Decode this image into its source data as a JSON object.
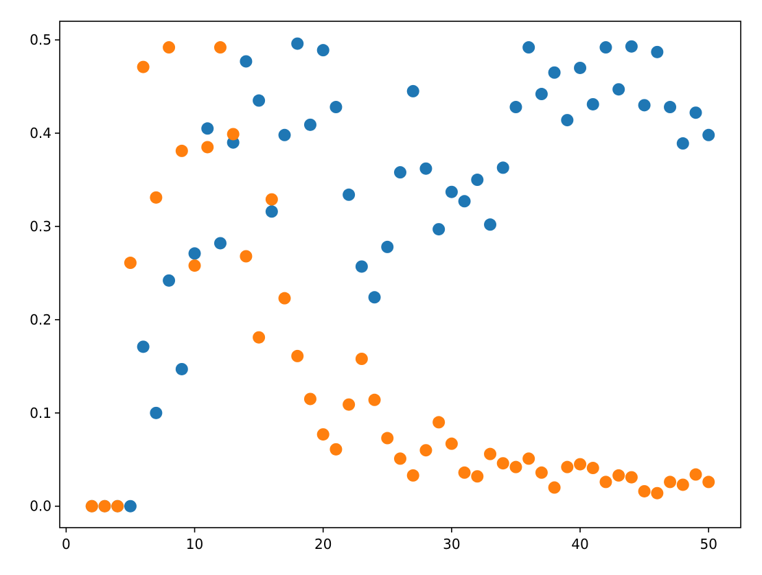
{
  "colors": {
    "series_blue": "#1f77b4",
    "series_orange": "#ff7f0e"
  },
  "chart_data": {
    "type": "scatter",
    "title": "",
    "xlabel": "",
    "ylabel": "",
    "xlim": [
      -0.5,
      52.5
    ],
    "ylim": [
      -0.023,
      0.52
    ],
    "grid": false,
    "legend": "none",
    "x_ticks": [
      0,
      10,
      20,
      30,
      40,
      50
    ],
    "x_tick_labels": [
      "0",
      "10",
      "20",
      "30",
      "40",
      "50"
    ],
    "y_ticks": [
      0.0,
      0.1,
      0.2,
      0.3,
      0.4,
      0.5
    ],
    "y_tick_labels": [
      "0.0",
      "0.1",
      "0.2",
      "0.3",
      "0.4",
      "0.5"
    ],
    "series": [
      {
        "color": "#1f77b4",
        "points": [
          [
            2,
            0.0
          ],
          [
            3,
            0.0
          ],
          [
            4,
            0.0
          ],
          [
            5,
            0.0
          ],
          [
            6,
            0.171
          ],
          [
            7,
            0.1
          ],
          [
            8,
            0.242
          ],
          [
            9,
            0.147
          ],
          [
            10,
            0.271
          ],
          [
            11,
            0.405
          ],
          [
            12,
            0.282
          ],
          [
            13,
            0.39
          ],
          [
            14,
            0.477
          ],
          [
            15,
            0.435
          ],
          [
            16,
            0.316
          ],
          [
            17,
            0.398
          ],
          [
            18,
            0.496
          ],
          [
            19,
            0.409
          ],
          [
            20,
            0.489
          ],
          [
            21,
            0.428
          ],
          [
            22,
            0.334
          ],
          [
            23,
            0.257
          ],
          [
            24,
            0.224
          ],
          [
            25,
            0.278
          ],
          [
            26,
            0.358
          ],
          [
            27,
            0.445
          ],
          [
            28,
            0.362
          ],
          [
            29,
            0.297
          ],
          [
            30,
            0.337
          ],
          [
            31,
            0.327
          ],
          [
            32,
            0.35
          ],
          [
            33,
            0.302
          ],
          [
            34,
            0.363
          ],
          [
            35,
            0.428
          ],
          [
            36,
            0.492
          ],
          [
            37,
            0.442
          ],
          [
            38,
            0.465
          ],
          [
            39,
            0.414
          ],
          [
            40,
            0.47
          ],
          [
            41,
            0.431
          ],
          [
            42,
            0.492
          ],
          [
            43,
            0.447
          ],
          [
            44,
            0.493
          ],
          [
            45,
            0.43
          ],
          [
            46,
            0.487
          ],
          [
            47,
            0.428
          ],
          [
            48,
            0.389
          ],
          [
            49,
            0.422
          ],
          [
            50,
            0.398
          ]
        ]
      },
      {
        "color": "#ff7f0e",
        "points": [
          [
            2,
            0.0
          ],
          [
            3,
            0.0
          ],
          [
            4,
            0.0
          ],
          [
            5,
            0.261
          ],
          [
            6,
            0.471
          ],
          [
            7,
            0.331
          ],
          [
            8,
            0.492
          ],
          [
            9,
            0.381
          ],
          [
            10,
            0.258
          ],
          [
            11,
            0.385
          ],
          [
            12,
            0.492
          ],
          [
            13,
            0.399
          ],
          [
            14,
            0.268
          ],
          [
            15,
            0.181
          ],
          [
            16,
            0.329
          ],
          [
            17,
            0.223
          ],
          [
            18,
            0.161
          ],
          [
            19,
            0.115
          ],
          [
            20,
            0.077
          ],
          [
            21,
            0.061
          ],
          [
            22,
            0.109
          ],
          [
            23,
            0.158
          ],
          [
            24,
            0.114
          ],
          [
            25,
            0.073
          ],
          [
            26,
            0.051
          ],
          [
            27,
            0.033
          ],
          [
            28,
            0.06
          ],
          [
            29,
            0.09
          ],
          [
            30,
            0.067
          ],
          [
            31,
            0.036
          ],
          [
            32,
            0.032
          ],
          [
            33,
            0.056
          ],
          [
            34,
            0.046
          ],
          [
            35,
            0.042
          ],
          [
            36,
            0.051
          ],
          [
            37,
            0.036
          ],
          [
            38,
            0.02
          ],
          [
            39,
            0.042
          ],
          [
            40,
            0.045
          ],
          [
            41,
            0.041
          ],
          [
            42,
            0.026
          ],
          [
            43,
            0.033
          ],
          [
            44,
            0.031
          ],
          [
            45,
            0.016
          ],
          [
            46,
            0.014
          ],
          [
            47,
            0.026
          ],
          [
            48,
            0.023
          ],
          [
            49,
            0.034
          ],
          [
            50,
            0.026
          ]
        ]
      }
    ]
  }
}
